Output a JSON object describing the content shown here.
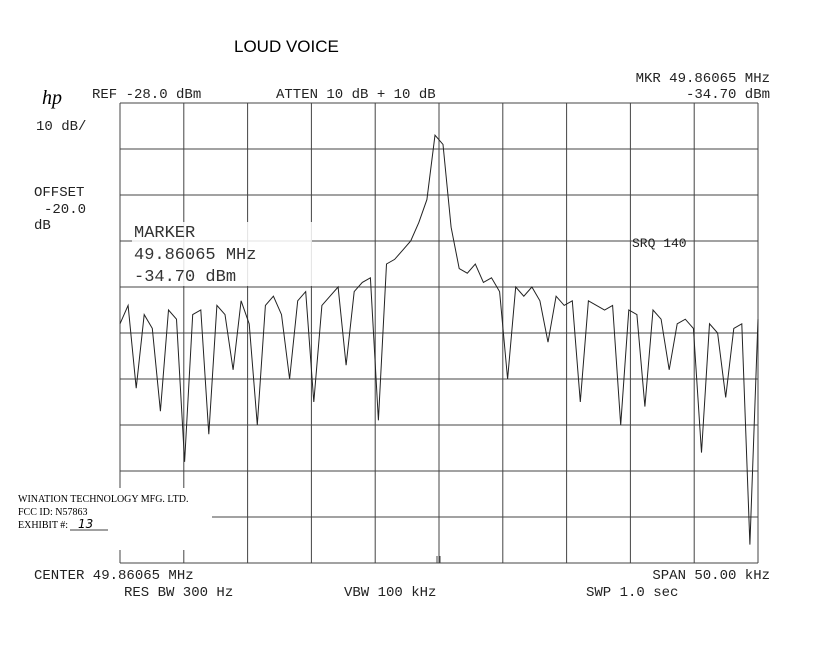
{
  "header": {
    "title": "LOUD VOICE",
    "logo": "hp",
    "ref": "REF -28.0 dBm",
    "atten": "ATTEN 10 dB + 10 dB",
    "mkr_freq": "MKR 49.86065 MHz",
    "mkr_level": "-34.70 dBm"
  },
  "left_panel": {
    "scale": "10 dB/",
    "offset_label": "OFFSET",
    "offset_value": "-20.0",
    "offset_unit": "dB"
  },
  "marker_box": {
    "label": "MARKER",
    "freq": "49.86065 MHz",
    "level": "-34.70 dBm"
  },
  "srq": "SRQ 140",
  "footer": {
    "center": "CENTER 49.86065 MHz",
    "res_bw": "RES BW 300 Hz",
    "vbw": "VBW 100 kHz",
    "span": "SPAN 50.00 kHz",
    "swp": "SWP 1.0 sec"
  },
  "stamp": {
    "company": "WINATION TECHNOLOGY MFG. LTD.",
    "fcc": "FCC ID: N57863",
    "exhibit_label": "EXHIBIT #:",
    "exhibit_number": "13"
  },
  "trace": {
    "ylim": [
      -128,
      -28
    ],
    "values": [
      -76,
      -72,
      -90,
      -74,
      -77,
      -95,
      -73,
      -75,
      -106,
      -74,
      -73,
      -100,
      -72,
      -74,
      -86,
      -71,
      -76,
      -98,
      -72,
      -70,
      -74,
      -88,
      -71,
      -69,
      -93,
      -72,
      -70,
      -68,
      -85,
      -69,
      -67,
      -66,
      -97,
      -63,
      -62,
      -60,
      -58,
      -54,
      -49,
      -35,
      -37,
      -55,
      -64,
      -65,
      -63,
      -67,
      -66,
      -69,
      -88,
      -68,
      -70,
      -68,
      -71,
      -80,
      -70,
      -72,
      -71,
      -93,
      -71,
      -72,
      -73,
      -72,
      -98,
      -73,
      -74,
      -94,
      -73,
      -75,
      -86,
      -76,
      -75,
      -77,
      -104,
      -76,
      -78,
      -92,
      -77,
      -76,
      -124,
      -75
    ]
  }
}
